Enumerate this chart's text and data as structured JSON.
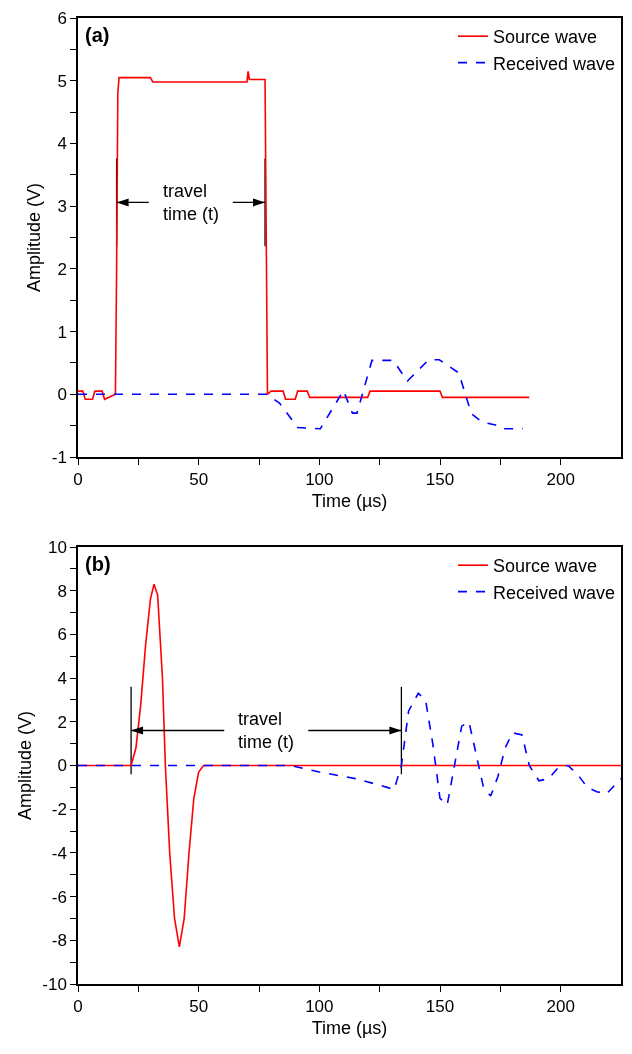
{
  "chart_data": [
    {
      "type": "line",
      "xlabel": "Time (µs)",
      "ylabel": "Amplitude (V)",
      "legend": "top right",
      "grid": false,
      "marker": "none",
      "xlim": [
        0,
        225
      ],
      "xticks": [
        0,
        {
          "value": 25,
          "label": null
        },
        50,
        {
          "value": 75,
          "label": null
        },
        100,
        {
          "value": 125,
          "label": null
        },
        150,
        {
          "value": 175,
          "label": null
        },
        200
      ],
      "ylim": [
        -1,
        6
      ],
      "yticks": [
        -1,
        {
          "value": -0.5,
          "label": null
        },
        0,
        {
          "value": 0.5,
          "label": null
        },
        1,
        {
          "value": 1.5,
          "label": null
        },
        2,
        {
          "value": 2.5,
          "label": null
        },
        3,
        {
          "value": 3.5,
          "label": null
        },
        4,
        {
          "value": 4.5,
          "label": null
        },
        5,
        {
          "value": 5.5,
          "label": null
        },
        6
      ],
      "annotations": [
        "(a)"
      ],
      "ref_lines": [
        {
          "axis": "x",
          "value": 16,
          "color": "#000000",
          "label": "travel\ntime (t)"
        },
        {
          "axis": "x",
          "value": 77.5,
          "color": "#000000"
        }
      ],
      "series": [
        {
          "name": "Source wave",
          "color": "#ff0000",
          "line_style": "solid",
          "x": [
            0,
            2,
            3,
            6,
            7,
            10,
            11,
            15.5,
            16,
            16.5,
            17,
            30,
            31,
            70,
            70.5,
            71,
            77.5,
            78.5,
            80,
            85,
            86,
            90,
            91,
            95,
            96,
            120,
            121,
            150,
            151,
            160,
            161,
            187
          ],
          "values": [
            0.05,
            0.05,
            -0.08,
            -0.08,
            0.05,
            0.05,
            -0.08,
            0,
            2,
            4.8,
            5.05,
            5.05,
            4.98,
            4.98,
            5.15,
            5.02,
            5.02,
            0,
            0.05,
            0.05,
            -0.08,
            -0.08,
            0.05,
            0.05,
            -0.05,
            -0.05,
            0.05,
            0.05,
            -0.05,
            -0.05,
            -0.05,
            -0.05
          ]
        },
        {
          "name": "Received wave",
          "color": "#0000ff",
          "line_style": "dashed",
          "x": [
            0,
            78,
            83.5,
            91,
            100.4,
            110,
            113.7,
            115.6,
            121.8,
            130.6,
            136.5,
            145.3,
            149.7,
            157.8,
            163,
            167.4,
            173,
            175.4,
            184.3
          ],
          "values": [
            0,
            0,
            -0.14,
            -0.53,
            -0.55,
            0.06,
            -0.3,
            -0.3,
            0.54,
            0.54,
            0.21,
            0.55,
            0.55,
            0.34,
            -0.31,
            -0.44,
            -0.49,
            -0.55,
            -0.55
          ]
        }
      ]
    },
    {
      "type": "line",
      "xlabel": "Time (µs)",
      "ylabel": "Amplitude (V)",
      "legend": "top right",
      "grid": false,
      "marker": "none",
      "xlim": [
        0,
        225
      ],
      "xticks": [
        0,
        {
          "value": 25,
          "label": null
        },
        50,
        {
          "value": 75,
          "label": null
        },
        100,
        {
          "value": 125,
          "label": null
        },
        150,
        {
          "value": 175,
          "label": null
        },
        200
      ],
      "ylim": [
        -10,
        10
      ],
      "yticks": [
        -10,
        {
          "value": -9,
          "label": null
        },
        -8,
        {
          "value": -7,
          "label": null
        },
        -6,
        {
          "value": -5,
          "label": null
        },
        -4,
        {
          "value": -3,
          "label": null
        },
        -2,
        {
          "value": -1,
          "label": null
        },
        0,
        {
          "value": 1,
          "label": null
        },
        2,
        {
          "value": 3,
          "label": null
        },
        4,
        {
          "value": 5,
          "label": null
        },
        6,
        {
          "value": 7,
          "label": null
        },
        8,
        {
          "value": 9,
          "label": null
        },
        10
      ],
      "annotations": [
        "(b)"
      ],
      "ref_lines": [
        {
          "axis": "x",
          "value": 22,
          "color": "#000000",
          "label": "travel\ntime (t)"
        },
        {
          "axis": "x",
          "value": 134,
          "color": "#000000"
        }
      ],
      "series": [
        {
          "name": "Source wave",
          "color": "#ff0000",
          "line_style": "solid",
          "x": [
            0,
            22,
            24,
            26,
            28,
            30,
            31.5,
            33,
            35,
            36.2,
            38,
            40,
            42,
            44,
            46,
            48,
            50,
            52,
            225
          ],
          "values": [
            0,
            0,
            0.8,
            2.8,
            5.5,
            7.6,
            8.3,
            7.8,
            4,
            0,
            -4,
            -7,
            -8.3,
            -7,
            -4,
            -1.5,
            -0.3,
            0,
            0
          ]
        },
        {
          "name": "Received wave",
          "color": "#0000ff",
          "line_style": "dashed",
          "x": [
            0,
            88,
            100,
            115,
            125,
            131,
            134,
            137,
            141,
            144,
            147,
            150,
            153,
            156,
            159,
            162,
            165,
            168,
            171,
            174,
            177,
            180,
            184,
            187,
            191,
            195,
            199,
            203,
            207,
            211,
            215,
            219,
            225
          ],
          "values": [
            0,
            0,
            -0.3,
            -0.6,
            -0.9,
            -1.1,
            0,
            2.5,
            3.3,
            3.0,
            1,
            -1.5,
            -1.8,
            0,
            1.8,
            2.0,
            0.5,
            -1,
            -1.4,
            -0.5,
            0.8,
            1.5,
            1.4,
            0,
            -0.7,
            -0.6,
            -0.1,
            0,
            -0.4,
            -1.0,
            -1.2,
            -1.3,
            -0.6
          ]
        }
      ]
    }
  ]
}
